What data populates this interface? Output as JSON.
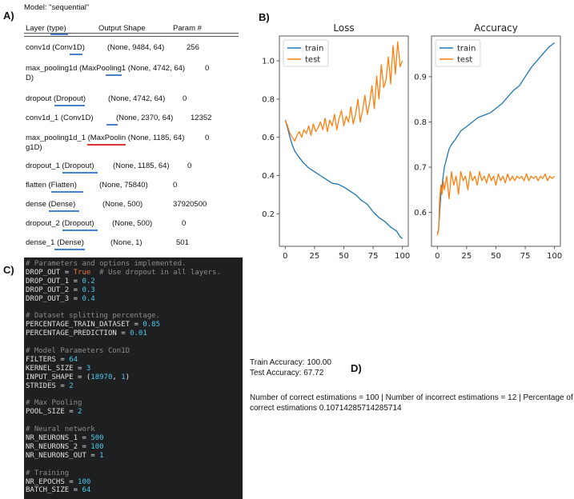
{
  "labels": {
    "a": "A)",
    "b": "B)",
    "c": "C)",
    "d": "D)"
  },
  "summary": {
    "model_title": "Model: \"sequential\"",
    "headers": [
      "Layer (type)",
      "Output Shape",
      "Param #"
    ],
    "rows": [
      {
        "layer": "conv1d (Conv1D)",
        "shape": "(None, 9484, 64)",
        "params": "256"
      },
      {
        "layer": "max_pooling1d (MaxPooling1 (None, 4742, 64)",
        "layer2": "D)",
        "shape": "",
        "params": "0"
      },
      {
        "layer": "dropout (Dropout)",
        "shape": "(None, 4742, 64)",
        "params": "0"
      },
      {
        "layer": "conv1d_1 (Conv1D)",
        "shape": "(None, 2370, 64)",
        "params": "12352"
      },
      {
        "layer": "max_pooling1d_1 (MaxPoolin (None, 1185, 64)",
        "layer2": "g1D)",
        "shape": "",
        "params": "0"
      },
      {
        "layer": "dropout_1 (Dropout)",
        "shape": "(None, 1185, 64)",
        "params": "0"
      },
      {
        "layer": "flatten (Flatten)",
        "shape": "(None, 75840)",
        "params": "0"
      },
      {
        "layer": "dense (Dense)",
        "shape": "(None, 500)",
        "params": "37920500"
      },
      {
        "layer": "dropout_2 (Dropout)",
        "shape": "(None, 500)",
        "params": "0"
      },
      {
        "layer": "dense_1 (Dense)",
        "shape": "(None, 1)",
        "params": "501"
      }
    ]
  },
  "code": [
    [
      {
        "t": "# Parameters and options implemented.",
        "c": "comment"
      }
    ],
    [
      {
        "t": "DROP_OUT",
        "c": "var"
      },
      {
        "t": " = ",
        "c": "op"
      },
      {
        "t": "True",
        "c": "true"
      },
      {
        "t": "  # Use dropout in all layers.",
        "c": "comment"
      }
    ],
    [
      {
        "t": "DROP_OUT_1",
        "c": "var"
      },
      {
        "t": " = ",
        "c": "op"
      },
      {
        "t": "0.2",
        "c": "num"
      }
    ],
    [
      {
        "t": "DROP_OUT_2",
        "c": "var"
      },
      {
        "t": " = ",
        "c": "op"
      },
      {
        "t": "0.3",
        "c": "num"
      }
    ],
    [
      {
        "t": "DROP_OUT_3",
        "c": "var"
      },
      {
        "t": " = ",
        "c": "op"
      },
      {
        "t": "0.4",
        "c": "num"
      }
    ],
    [],
    [
      {
        "t": "# Dataset splitting percentage.",
        "c": "comment"
      }
    ],
    [
      {
        "t": "PERCENTAGE_TRAIN_DATASET",
        "c": "var"
      },
      {
        "t": " = ",
        "c": "op"
      },
      {
        "t": "0.85",
        "c": "num"
      }
    ],
    [
      {
        "t": "PERCENTAGE_PREDICTION",
        "c": "var"
      },
      {
        "t": " = ",
        "c": "op"
      },
      {
        "t": "0.01",
        "c": "num"
      }
    ],
    [],
    [
      {
        "t": "# Model Parameters Con1D",
        "c": "comment"
      }
    ],
    [
      {
        "t": "FILTERS",
        "c": "var"
      },
      {
        "t": " = ",
        "c": "op"
      },
      {
        "t": "64",
        "c": "num"
      }
    ],
    [
      {
        "t": "KERNEL_SIZE",
        "c": "var"
      },
      {
        "t": " = ",
        "c": "op"
      },
      {
        "t": "3",
        "c": "num"
      }
    ],
    [
      {
        "t": "INPUT_SHAPE",
        "c": "var"
      },
      {
        "t": " = (",
        "c": "op"
      },
      {
        "t": "18970",
        "c": "num"
      },
      {
        "t": ", ",
        "c": "op"
      },
      {
        "t": "1",
        "c": "num"
      },
      {
        "t": ")",
        "c": "op"
      }
    ],
    [
      {
        "t": "STRIDES",
        "c": "var"
      },
      {
        "t": " = ",
        "c": "op"
      },
      {
        "t": "2",
        "c": "num"
      }
    ],
    [],
    [
      {
        "t": "# Max Pooling",
        "c": "comment"
      }
    ],
    [
      {
        "t": "POOL_SIZE",
        "c": "var"
      },
      {
        "t": " = ",
        "c": "op"
      },
      {
        "t": "2",
        "c": "num"
      }
    ],
    [],
    [
      {
        "t": "# Neural network",
        "c": "comment"
      }
    ],
    [
      {
        "t": "NR_NEURONS_1",
        "c": "var"
      },
      {
        "t": " = ",
        "c": "op"
      },
      {
        "t": "500",
        "c": "num"
      }
    ],
    [
      {
        "t": "NR_NEURONS_2",
        "c": "var"
      },
      {
        "t": " = ",
        "c": "op"
      },
      {
        "t": "100",
        "c": "num"
      }
    ],
    [
      {
        "t": "NR_NEURONS_OUT",
        "c": "var"
      },
      {
        "t": " = ",
        "c": "op"
      },
      {
        "t": "1",
        "c": "num"
      }
    ],
    [],
    [
      {
        "t": "# Training",
        "c": "comment"
      }
    ],
    [
      {
        "t": "NR_EPOCHS",
        "c": "var"
      },
      {
        "t": " = ",
        "c": "op"
      },
      {
        "t": "100",
        "c": "num"
      }
    ],
    [
      {
        "t": "BATCH_SIZE",
        "c": "var"
      },
      {
        "t": " = ",
        "c": "op"
      },
      {
        "t": "64",
        "c": "num"
      }
    ]
  ],
  "results": {
    "train_acc": "Train Accuracy: 100.00",
    "test_acc": "Test Accuracy: 67.72",
    "estim_line1": "Number of correct estimations = 100 | Number of incorrect estimations = 12 | Percentage of in-",
    "estim_line2": "correct estimations 0.10714285714285714"
  },
  "colors": {
    "train": "#1f77b4",
    "test": "#ff7f0e",
    "code_bg": "#1d1f21"
  },
  "chart_data": [
    {
      "type": "line",
      "title": "Loss",
      "xlabel": "",
      "ylabel": "",
      "xlim": [
        -5,
        105
      ],
      "ylim": [
        0.03,
        1.13
      ],
      "xticks": [
        0,
        25,
        50,
        75,
        100
      ],
      "xtick_labels": [
        "0",
        "25",
        "50",
        "75",
        "100"
      ],
      "yticks": [
        0.2,
        0.4,
        0.6,
        0.8,
        1.0
      ],
      "ytick_labels": [
        "0.2",
        "0.4",
        "0.6",
        "0.8",
        "1.0"
      ],
      "legend": "top-left",
      "grid": false,
      "series": [
        {
          "name": "train",
          "color": "#1f77b4",
          "x": [
            0,
            2,
            4,
            6,
            8,
            10,
            15,
            20,
            25,
            30,
            35,
            40,
            45,
            50,
            55,
            60,
            65,
            70,
            75,
            80,
            85,
            90,
            95,
            98,
            100
          ],
          "y": [
            0.69,
            0.65,
            0.6,
            0.56,
            0.53,
            0.51,
            0.47,
            0.44,
            0.42,
            0.4,
            0.38,
            0.36,
            0.355,
            0.34,
            0.32,
            0.3,
            0.27,
            0.25,
            0.21,
            0.18,
            0.16,
            0.13,
            0.11,
            0.08,
            0.07
          ]
        },
        {
          "name": "test",
          "color": "#ff7f0e",
          "x": [
            0,
            2,
            4,
            6,
            8,
            10,
            12,
            14,
            16,
            18,
            20,
            22,
            24,
            26,
            28,
            30,
            32,
            34,
            36,
            38,
            40,
            42,
            44,
            46,
            48,
            50,
            52,
            54,
            56,
            58,
            60,
            62,
            64,
            66,
            68,
            70,
            72,
            74,
            76,
            78,
            80,
            82,
            84,
            86,
            88,
            90,
            92,
            94,
            96,
            98,
            100
          ],
          "y": [
            0.69,
            0.66,
            0.62,
            0.6,
            0.58,
            0.61,
            0.63,
            0.6,
            0.64,
            0.62,
            0.66,
            0.61,
            0.67,
            0.63,
            0.65,
            0.68,
            0.64,
            0.7,
            0.63,
            0.69,
            0.66,
            0.72,
            0.64,
            0.7,
            0.74,
            0.66,
            0.71,
            0.68,
            0.76,
            0.67,
            0.72,
            0.8,
            0.68,
            0.74,
            0.82,
            0.72,
            0.78,
            0.87,
            0.75,
            0.92,
            0.8,
            0.98,
            0.86,
            0.9,
            1.02,
            0.88,
            1.08,
            0.93,
            1.1,
            0.97,
            1.0
          ]
        }
      ]
    },
    {
      "type": "line",
      "title": "Accuracy",
      "xlabel": "",
      "ylabel": "",
      "xlim": [
        -5,
        105
      ],
      "ylim": [
        0.525,
        0.99
      ],
      "xticks": [
        0,
        25,
        50,
        75,
        100
      ],
      "xtick_labels": [
        "0",
        "25",
        "50",
        "75",
        "100"
      ],
      "yticks": [
        0.6,
        0.7,
        0.8,
        0.9
      ],
      "ytick_labels": [
        "0.6",
        "0.7",
        "0.8",
        "0.9"
      ],
      "legend": "top-left",
      "grid": false,
      "series": [
        {
          "name": "train",
          "color": "#1f77b4",
          "x": [
            0,
            1,
            2,
            3,
            4,
            5,
            6,
            8,
            10,
            12,
            15,
            20,
            25,
            30,
            35,
            40,
            45,
            50,
            55,
            60,
            65,
            70,
            75,
            80,
            85,
            90,
            95,
            100
          ],
          "y": [
            0.555,
            0.56,
            0.6,
            0.64,
            0.66,
            0.68,
            0.7,
            0.72,
            0.74,
            0.75,
            0.76,
            0.78,
            0.79,
            0.8,
            0.81,
            0.815,
            0.82,
            0.83,
            0.84,
            0.855,
            0.87,
            0.88,
            0.9,
            0.92,
            0.935,
            0.95,
            0.965,
            0.975
          ]
        },
        {
          "name": "test",
          "color": "#ff7f0e",
          "x": [
            0,
            1,
            2,
            3,
            4,
            5,
            6,
            8,
            10,
            12,
            14,
            16,
            18,
            20,
            22,
            24,
            26,
            28,
            30,
            32,
            34,
            36,
            38,
            40,
            42,
            44,
            46,
            48,
            50,
            52,
            54,
            56,
            58,
            60,
            62,
            64,
            66,
            68,
            70,
            72,
            74,
            76,
            78,
            80,
            82,
            84,
            86,
            88,
            90,
            92,
            94,
            96,
            98,
            100
          ],
          "y": [
            0.55,
            0.56,
            0.63,
            0.66,
            0.64,
            0.67,
            0.65,
            0.68,
            0.63,
            0.69,
            0.66,
            0.68,
            0.64,
            0.69,
            0.67,
            0.68,
            0.65,
            0.69,
            0.67,
            0.68,
            0.66,
            0.69,
            0.67,
            0.68,
            0.665,
            0.685,
            0.67,
            0.68,
            0.66,
            0.685,
            0.67,
            0.68,
            0.665,
            0.685,
            0.67,
            0.68,
            0.67,
            0.68,
            0.675,
            0.68,
            0.67,
            0.685,
            0.67,
            0.68,
            0.675,
            0.68,
            0.67,
            0.68,
            0.675,
            0.685,
            0.67,
            0.68,
            0.675,
            0.68
          ]
        }
      ]
    }
  ]
}
